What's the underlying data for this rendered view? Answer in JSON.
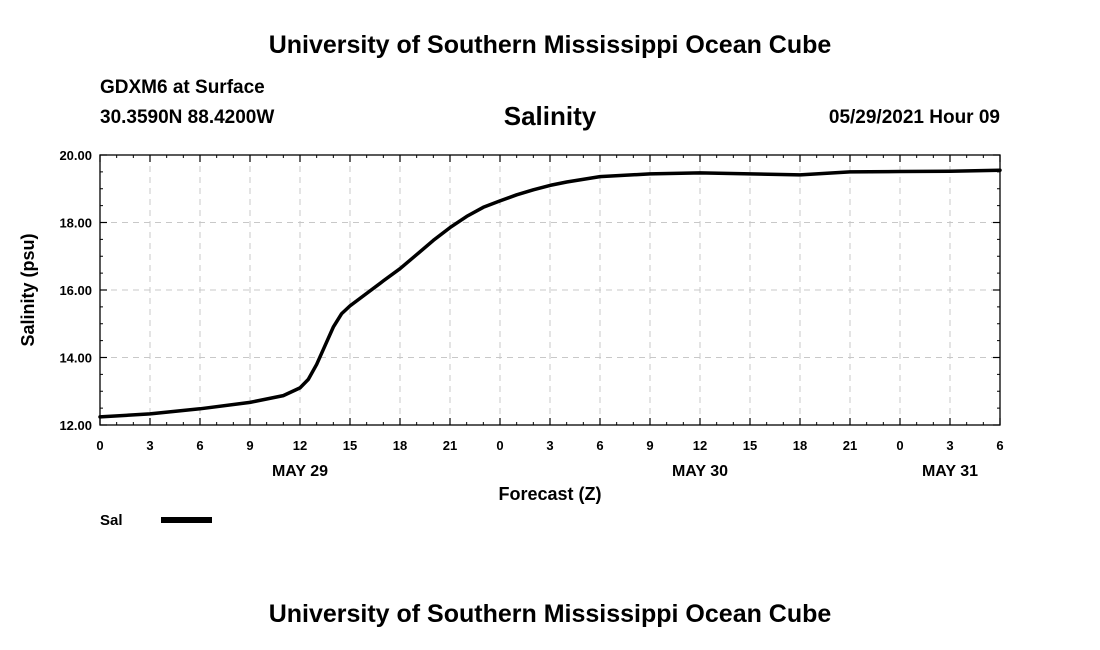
{
  "header": {
    "title": "University of Southern Mississippi Ocean Cube",
    "station": "GDXM6 at Surface",
    "coords": "30.3590N  88.4200W",
    "variable": "Salinity",
    "datetime": "05/29/2021 Hour 09"
  },
  "footer": {
    "title": "University of Southern Mississippi Ocean Cube"
  },
  "colors": {
    "line": "#000000",
    "grid": "#c8c8c8"
  },
  "chart_data": {
    "type": "line",
    "title": "Salinity",
    "xlabel": "Forecast (Z)",
    "ylabel": "Salinity (psu)",
    "ylim": [
      12.0,
      20.0
    ],
    "xlim": [
      0,
      54
    ],
    "x_units": "hours from May 29 00Z",
    "grid": true,
    "y_ticks": [
      "12.00",
      "14.00",
      "16.00",
      "18.00",
      "20.00"
    ],
    "y_tick_values": [
      12,
      14,
      16,
      18,
      20
    ],
    "x_ticks": [
      "0",
      "3",
      "6",
      "9",
      "12",
      "15",
      "18",
      "21",
      "0",
      "3",
      "6",
      "9",
      "12",
      "15",
      "18",
      "21",
      "0",
      "3",
      "6"
    ],
    "x_tick_values": [
      0,
      3,
      6,
      9,
      12,
      15,
      18,
      21,
      24,
      27,
      30,
      33,
      36,
      39,
      42,
      45,
      48,
      51,
      54
    ],
    "date_labels": [
      {
        "label": "MAY 29",
        "hour": 12
      },
      {
        "label": "MAY 30",
        "hour": 36
      },
      {
        "label": "MAY 31",
        "hour": 51
      }
    ],
    "legend": [
      {
        "name": "Sal",
        "placement": "bottom-left"
      }
    ],
    "series": [
      {
        "name": "Sal",
        "x": [
          0,
          3,
          6,
          9,
          11,
          12,
          12.5,
          13,
          13.5,
          14,
          14.5,
          15,
          16,
          17,
          18,
          19,
          20,
          21,
          22,
          23,
          24,
          25,
          26,
          27,
          28,
          30,
          33,
          36,
          39,
          42,
          45,
          48,
          51,
          54
        ],
        "values": [
          12.24,
          12.33,
          12.48,
          12.67,
          12.87,
          13.1,
          13.35,
          13.8,
          14.35,
          14.9,
          15.3,
          15.53,
          15.9,
          16.27,
          16.63,
          17.05,
          17.47,
          17.85,
          18.18,
          18.45,
          18.64,
          18.82,
          18.97,
          19.1,
          19.2,
          19.36,
          19.44,
          19.47,
          19.44,
          19.41,
          19.5,
          19.51,
          19.52,
          19.55
        ]
      }
    ]
  }
}
